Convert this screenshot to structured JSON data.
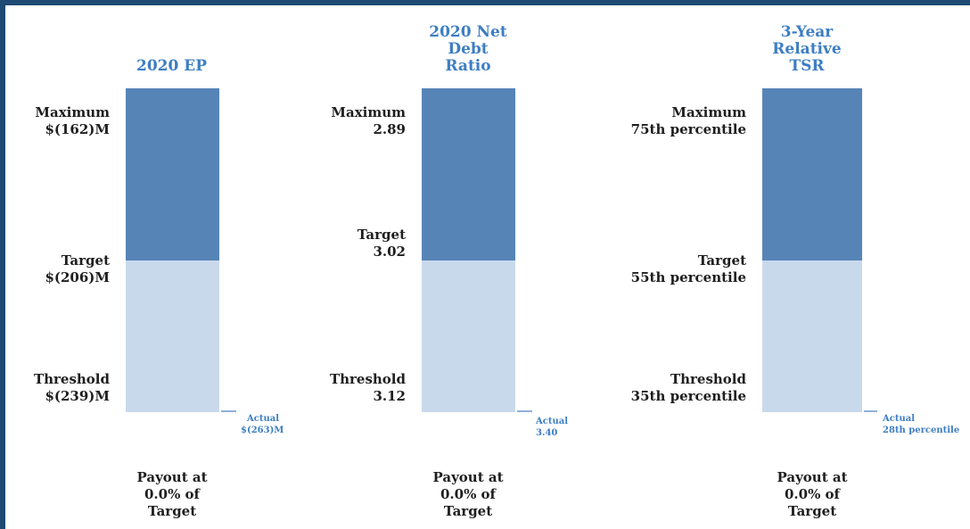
{
  "chart_data": [
    {
      "type": "bar",
      "title": "2020 EP",
      "levels": [
        {
          "name": "Maximum",
          "value": "$(162)M"
        },
        {
          "name": "Target",
          "value": "$(206)M"
        },
        {
          "name": "Threshold",
          "value": "$(239)M"
        }
      ],
      "actual": {
        "label": "Actual",
        "value": "$(263)M"
      },
      "payout": {
        "line1": "Payout at",
        "line2": "0.0% of",
        "line3": "Target"
      }
    },
    {
      "type": "bar",
      "title": "2020 Net\nDebt\nRatio",
      "levels": [
        {
          "name": "Maximum",
          "value": "2.89"
        },
        {
          "name": "Target",
          "value": "3.02"
        },
        {
          "name": "Threshold",
          "value": "3.12"
        }
      ],
      "actual": {
        "label": "Actual",
        "value": "3.40"
      },
      "payout": {
        "line1": "Payout at",
        "line2": "0.0% of",
        "line3": "Target"
      }
    },
    {
      "type": "bar",
      "title": "3-Year\nRelative\nTSR",
      "levels": [
        {
          "name": "Maximum",
          "value": "75th percentile"
        },
        {
          "name": "Target",
          "value": "55th percentile"
        },
        {
          "name": "Threshold",
          "value": "35th percentile"
        }
      ],
      "actual": {
        "label": "Actual",
        "value": "28th percentile"
      },
      "payout": {
        "line1": "Payout at",
        "line2": "0.0% of",
        "line3": "Target"
      }
    }
  ],
  "colors": {
    "frame": "#1f4a73",
    "above_target": "#5784b7",
    "below_target": "#c9d9ec",
    "title": "#3d7ec4",
    "actual": "#3d7ec4"
  }
}
